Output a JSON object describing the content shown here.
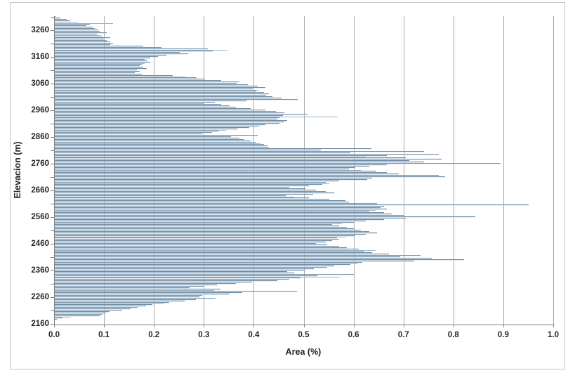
{
  "colors": {
    "bar_fill": "#cfdbe6",
    "bar_border": "#6e8ea9",
    "gridline": "#a6a6a6",
    "axis_line": "#808080",
    "text": "#262626",
    "frame_border": "#c6c6c6",
    "background": "#ffffff"
  },
  "chart_data": {
    "type": "bar",
    "orientation": "horizontal",
    "title": "",
    "xlabel": "Area (%)",
    "ylabel": "Elevacion (m)",
    "xlim": [
      0.0,
      1.0
    ],
    "x_ticks": [
      "0.0",
      "0.1",
      "0.2",
      "0.3",
      "0.4",
      "0.5",
      "0.6",
      "0.7",
      "0.8",
      "0.9",
      "1.0"
    ],
    "y_tick_labels": [
      3260,
      3160,
      3060,
      2960,
      2860,
      2760,
      2660,
      2560,
      2460,
      2360,
      2260,
      2160
    ],
    "y_minor_tick_interval_m": 50,
    "grid": "vertical",
    "legend": "none",
    "elevation_top_m": 3310,
    "elevation_bottom_m": 2160,
    "elevation_step_m": 5,
    "values_order": "top_elevation_first",
    "values": [
      0.003,
      0.012,
      0.025,
      0.032,
      0.048,
      0.118,
      0.072,
      0.065,
      0.078,
      0.082,
      0.088,
      0.092,
      0.105,
      0.086,
      0.093,
      0.098,
      0.112,
      0.101,
      0.106,
      0.112,
      0.118,
      0.112,
      0.178,
      0.215,
      0.308,
      0.348,
      0.318,
      0.252,
      0.268,
      0.225,
      0.208,
      0.192,
      0.182,
      0.187,
      0.192,
      0.182,
      0.176,
      0.171,
      0.179,
      0.186,
      0.166,
      0.171,
      0.162,
      0.176,
      0.238,
      0.263,
      0.285,
      0.302,
      0.335,
      0.372,
      0.366,
      0.388,
      0.408,
      0.424,
      0.398,
      0.411,
      0.405,
      0.421,
      0.431,
      0.425,
      0.438,
      0.456,
      0.488,
      0.385,
      0.322,
      0.301,
      0.335,
      0.351,
      0.364,
      0.394,
      0.424,
      0.444,
      0.461,
      0.508,
      0.459,
      0.568,
      0.451,
      0.447,
      0.467,
      0.461,
      0.451,
      0.424,
      0.411,
      0.391,
      0.367,
      0.344,
      0.329,
      0.317,
      0.297,
      0.408,
      0.354,
      0.371,
      0.381,
      0.394,
      0.404,
      0.414,
      0.421,
      0.427,
      0.431,
      0.636,
      0.534,
      0.741,
      0.594,
      0.771,
      0.667,
      0.624,
      0.704,
      0.777,
      0.711,
      0.741,
      0.894,
      0.667,
      0.631,
      0.604,
      0.591,
      0.614,
      0.644,
      0.667,
      0.691,
      0.771,
      0.784,
      0.637,
      0.627,
      0.571,
      0.544,
      0.551,
      0.537,
      0.511,
      0.471,
      0.504,
      0.524,
      0.544,
      0.561,
      0.519,
      0.464,
      0.481,
      0.511,
      0.551,
      0.584,
      0.591,
      0.647,
      0.951,
      0.661,
      0.654,
      0.667,
      0.644,
      0.631,
      0.661,
      0.677,
      0.701,
      0.844,
      0.704,
      0.661,
      0.624,
      0.601,
      0.577,
      0.557,
      0.571,
      0.587,
      0.601,
      0.614,
      0.631,
      0.647,
      0.624,
      0.604,
      0.584,
      0.567,
      0.571,
      0.557,
      0.544,
      0.524,
      0.547,
      0.571,
      0.587,
      0.611,
      0.644,
      0.621,
      0.637,
      0.671,
      0.734,
      0.694,
      0.757,
      0.821,
      0.721,
      0.617,
      0.607,
      0.594,
      0.561,
      0.547,
      0.521,
      0.504,
      0.467,
      0.481,
      0.601,
      0.527,
      0.574,
      0.494,
      0.471,
      0.447,
      0.397,
      0.364,
      0.327,
      0.301,
      0.271,
      0.334,
      0.321,
      0.487,
      0.377,
      0.351,
      0.297,
      0.291,
      0.324,
      0.284,
      0.261,
      0.231,
      0.221,
      0.197,
      0.184,
      0.167,
      0.154,
      0.137,
      0.111,
      0.104,
      0.097,
      0.091,
      0.034,
      0.017,
      0.006,
      0.0,
      0.0,
      0.0
    ]
  }
}
